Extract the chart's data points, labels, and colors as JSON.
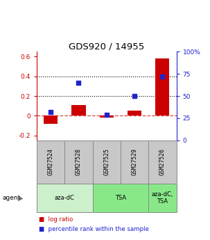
{
  "title": "GDS920 / 14955",
  "samples": [
    "GSM27524",
    "GSM27528",
    "GSM27525",
    "GSM27529",
    "GSM27526"
  ],
  "log_ratios": [
    -0.08,
    0.11,
    -0.02,
    0.05,
    0.58
  ],
  "percentile_ranks_pct": [
    32,
    65,
    29,
    50,
    72
  ],
  "bar_color": "#cc0000",
  "dot_color": "#2222cc",
  "ylim_left": [
    -0.25,
    0.65
  ],
  "ylim_right": [
    0,
    100
  ],
  "yticks_left": [
    -0.2,
    0.0,
    0.2,
    0.4,
    0.6
  ],
  "ytick_labels_left": [
    "-0.2",
    "0",
    "0.2",
    "0.4",
    "0.6"
  ],
  "yticks_right": [
    0,
    25,
    50,
    75,
    100
  ],
  "ytick_labels_right": [
    "0",
    "25",
    "50",
    "75",
    "100%"
  ],
  "hlines": [
    0.2,
    0.4
  ],
  "agent_groups": [
    {
      "label": "aza-dC",
      "span": [
        0,
        2
      ],
      "color": "#ccf0cc"
    },
    {
      "label": "TSA",
      "span": [
        2,
        4
      ],
      "color": "#88e888"
    },
    {
      "label": "aza-dC,\nTSA",
      "span": [
        4,
        5
      ],
      "color": "#88e888"
    }
  ],
  "legend_red_label": "log ratio",
  "legend_blue_label": "percentile rank within the sample",
  "zero_line_color": "#dd4444",
  "bar_width": 0.5,
  "box_color": "#c8c8c8",
  "box_edge_color": "#888888"
}
